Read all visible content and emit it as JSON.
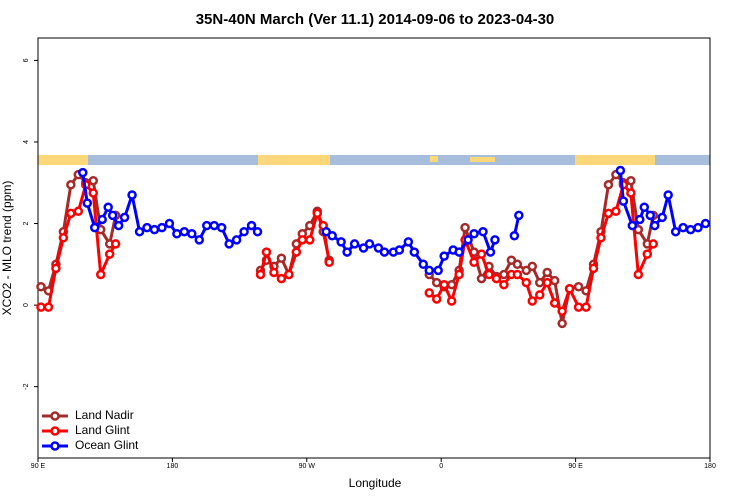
{
  "chart_data": {
    "type": "line",
    "title": "35N-40N March (Ver 11.1)   2014-09-06 to 2023-04-30",
    "x_label": "Longitude",
    "y_label": "XCO2 - MLO trend (ppm)",
    "xlim": [
      90,
      540
    ],
    "ylim": [
      -3.75,
      6.55
    ],
    "xticks": [
      {
        "value": 90,
        "label": "90 E"
      },
      180,
      {
        "value": 270,
        "label": "90 W"
      },
      {
        "value": 360,
        "label": "0"
      },
      {
        "value": 450,
        "label": "90 E"
      },
      {
        "value": 540,
        "label": "180"
      }
    ],
    "yticks": [
      -2,
      0,
      2,
      4,
      6
    ],
    "legend": "bottom-left",
    "series": [
      {
        "name": "Land Nadir",
        "color": "#a52a2a",
        "x": [
          92,
          97,
          102,
          107,
          112,
          117,
          122,
          127,
          132,
          138,
          142,
          null,
          239,
          243,
          248,
          253,
          258,
          263,
          267,
          272,
          277,
          281,
          285,
          null,
          352,
          357,
          362,
          367,
          372,
          376,
          382,
          387,
          392,
          397,
          402,
          407,
          411,
          417,
          421,
          426,
          431,
          436,
          441,
          446,
          452,
          457,
          462,
          467,
          472,
          477,
          482,
          487,
          492,
          498,
          502
        ],
        "values": [
          0.45,
          0.35,
          1.0,
          1.8,
          2.95,
          3.2,
          3.0,
          3.05,
          1.85,
          1.5,
          2.2,
          null,
          0.85,
          1.1,
          0.95,
          1.15,
          0.75,
          1.5,
          1.75,
          1.95,
          2.3,
          1.8,
          1.1,
          null,
          0.75,
          0.55,
          0.45,
          0.5,
          0.85,
          1.9,
          1.3,
          0.65,
          0.95,
          0.7,
          0.75,
          1.1,
          1.0,
          0.85,
          0.95,
          0.55,
          0.8,
          0.6,
          -0.45,
          0.4,
          0.45,
          0.35,
          1.0,
          1.8,
          2.95,
          3.2,
          3.0,
          3.05,
          1.85,
          1.5,
          2.2
        ]
      },
      {
        "name": "Land Glint",
        "color": "#ff0000",
        "x": [
          92,
          97,
          102,
          107,
          112,
          117,
          122,
          127,
          132,
          138,
          142,
          null,
          239,
          243,
          248,
          253,
          258,
          263,
          267,
          272,
          277,
          281,
          285,
          null,
          352,
          357,
          362,
          367,
          372,
          376,
          382,
          387,
          392,
          397,
          402,
          407,
          411,
          417,
          421,
          426,
          431,
          436,
          441,
          446,
          452,
          457,
          462,
          467,
          472,
          477,
          482,
          487,
          492,
          498,
          502
        ],
        "values": [
          -0.05,
          -0.05,
          0.9,
          1.65,
          2.25,
          2.3,
          2.95,
          2.75,
          0.75,
          1.25,
          1.5,
          null,
          0.75,
          1.3,
          0.8,
          0.65,
          0.75,
          1.3,
          1.6,
          1.6,
          2.25,
          1.95,
          1.05,
          null,
          0.3,
          0.15,
          0.5,
          0.1,
          0.75,
          1.6,
          1.05,
          1.25,
          0.75,
          0.65,
          0.5,
          0.75,
          0.75,
          0.55,
          0.1,
          0.25,
          0.55,
          0.05,
          -0.15,
          0.4,
          -0.05,
          -0.05,
          0.9,
          1.65,
          2.25,
          2.3,
          2.95,
          2.75,
          0.75,
          1.25,
          1.5
        ]
      },
      {
        "name": "Ocean Glint",
        "color": "#0000ff",
        "x": [
          120,
          123,
          128,
          133,
          137,
          140,
          144,
          148,
          153,
          158,
          163,
          168,
          173,
          178,
          183,
          188,
          193,
          198,
          203,
          208,
          213,
          218,
          223,
          228,
          233,
          237,
          null,
          283,
          287,
          293,
          297,
          302,
          308,
          312,
          318,
          322,
          328,
          332,
          338,
          342,
          348,
          352,
          358,
          362,
          368,
          372,
          378,
          382,
          388,
          393,
          396,
          null,
          409,
          412,
          null,
          480,
          482,
          488,
          493,
          496,
          500,
          503,
          508,
          512,
          517,
          522,
          527,
          532,
          537
        ],
        "values": [
          3.25,
          2.5,
          1.9,
          2.1,
          2.4,
          2.2,
          1.95,
          2.15,
          2.7,
          1.8,
          1.9,
          1.85,
          1.9,
          2.0,
          1.75,
          1.8,
          1.75,
          1.6,
          1.95,
          1.95,
          1.9,
          1.5,
          1.6,
          1.8,
          1.95,
          1.8,
          null,
          1.8,
          1.7,
          1.55,
          1.3,
          1.5,
          1.4,
          1.5,
          1.4,
          1.3,
          1.3,
          1.35,
          1.55,
          1.3,
          1.0,
          0.85,
          0.85,
          1.2,
          1.35,
          1.3,
          1.6,
          1.75,
          1.8,
          1.3,
          1.6,
          null,
          1.7,
          2.2,
          null,
          3.3,
          2.55,
          1.95,
          2.1,
          2.4,
          2.2,
          1.95,
          2.15,
          2.7,
          1.8,
          1.9,
          1.85,
          1.9,
          2.0
        ]
      }
    ]
  }
}
